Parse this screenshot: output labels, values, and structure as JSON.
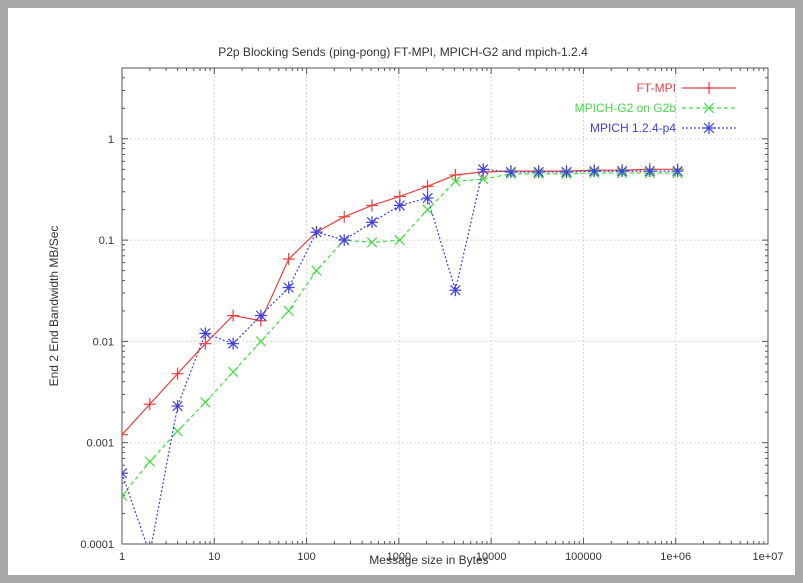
{
  "chart_data": {
    "type": "line",
    "title": "P2p Blocking Sends (ping-pong) FT-MPI, MPICH-G2 and mpich-1.2.4",
    "xlabel": "Message size in Bytes",
    "ylabel": "End 2 End Bandwidth MB/Sec",
    "xscale": "log",
    "yscale": "log",
    "xlim": [
      1,
      10000000
    ],
    "ylim": [
      0.0001,
      5
    ],
    "grid": true,
    "legend_position": "top-right",
    "x_ticks": [
      {
        "value": 1,
        "label": "1"
      },
      {
        "value": 10,
        "label": "10"
      },
      {
        "value": 100,
        "label": "100"
      },
      {
        "value": 1000,
        "label": "1000"
      },
      {
        "value": 10000,
        "label": "10000"
      },
      {
        "value": 100000,
        "label": "100000"
      },
      {
        "value": 1000000,
        "label": "1e+06"
      },
      {
        "value": 10000000,
        "label": "1e+07"
      }
    ],
    "y_ticks": [
      {
        "value": 0.0001,
        "label": "0.0001"
      },
      {
        "value": 0.001,
        "label": "0.001"
      },
      {
        "value": 0.01,
        "label": "0.01"
      },
      {
        "value": 0.1,
        "label": "0.1"
      },
      {
        "value": 1,
        "label": "1"
      }
    ],
    "x": [
      1,
      2,
      4,
      8,
      16,
      32,
      64,
      128,
      256,
      512,
      1024,
      2048,
      4096,
      8192,
      16384,
      32768,
      65536,
      131072,
      262144,
      524288,
      1048576
    ],
    "series": [
      {
        "name": "FT-MPI",
        "color": "#e84040",
        "marker": "plus",
        "line": "solid",
        "values": [
          0.0012,
          0.0024,
          0.0048,
          0.0095,
          0.018,
          0.016,
          0.065,
          0.12,
          0.17,
          0.22,
          0.27,
          0.34,
          0.44,
          0.47,
          0.48,
          0.48,
          0.48,
          0.49,
          0.49,
          0.5,
          0.5
        ]
      },
      {
        "name": "MPICH-G2 on G2b",
        "color": "#40dd40",
        "marker": "x",
        "line": "dashed",
        "values": [
          0.0003,
          0.00065,
          0.0013,
          0.0025,
          0.005,
          0.01,
          0.02,
          0.05,
          0.1,
          0.095,
          0.1,
          0.2,
          0.38,
          0.4,
          0.45,
          0.45,
          0.45,
          0.46,
          0.46,
          0.46,
          0.46
        ]
      },
      {
        "name": "MPICH 1.2.4-p4",
        "color": "#4040dd",
        "marker": "star",
        "line": "dotted",
        "values": [
          0.0005,
          8e-05,
          0.0023,
          0.012,
          0.0095,
          0.018,
          0.034,
          0.12,
          0.1,
          0.15,
          0.22,
          0.26,
          0.032,
          0.5,
          0.47,
          0.47,
          0.47,
          0.48,
          0.48,
          0.48,
          0.48
        ]
      }
    ]
  }
}
